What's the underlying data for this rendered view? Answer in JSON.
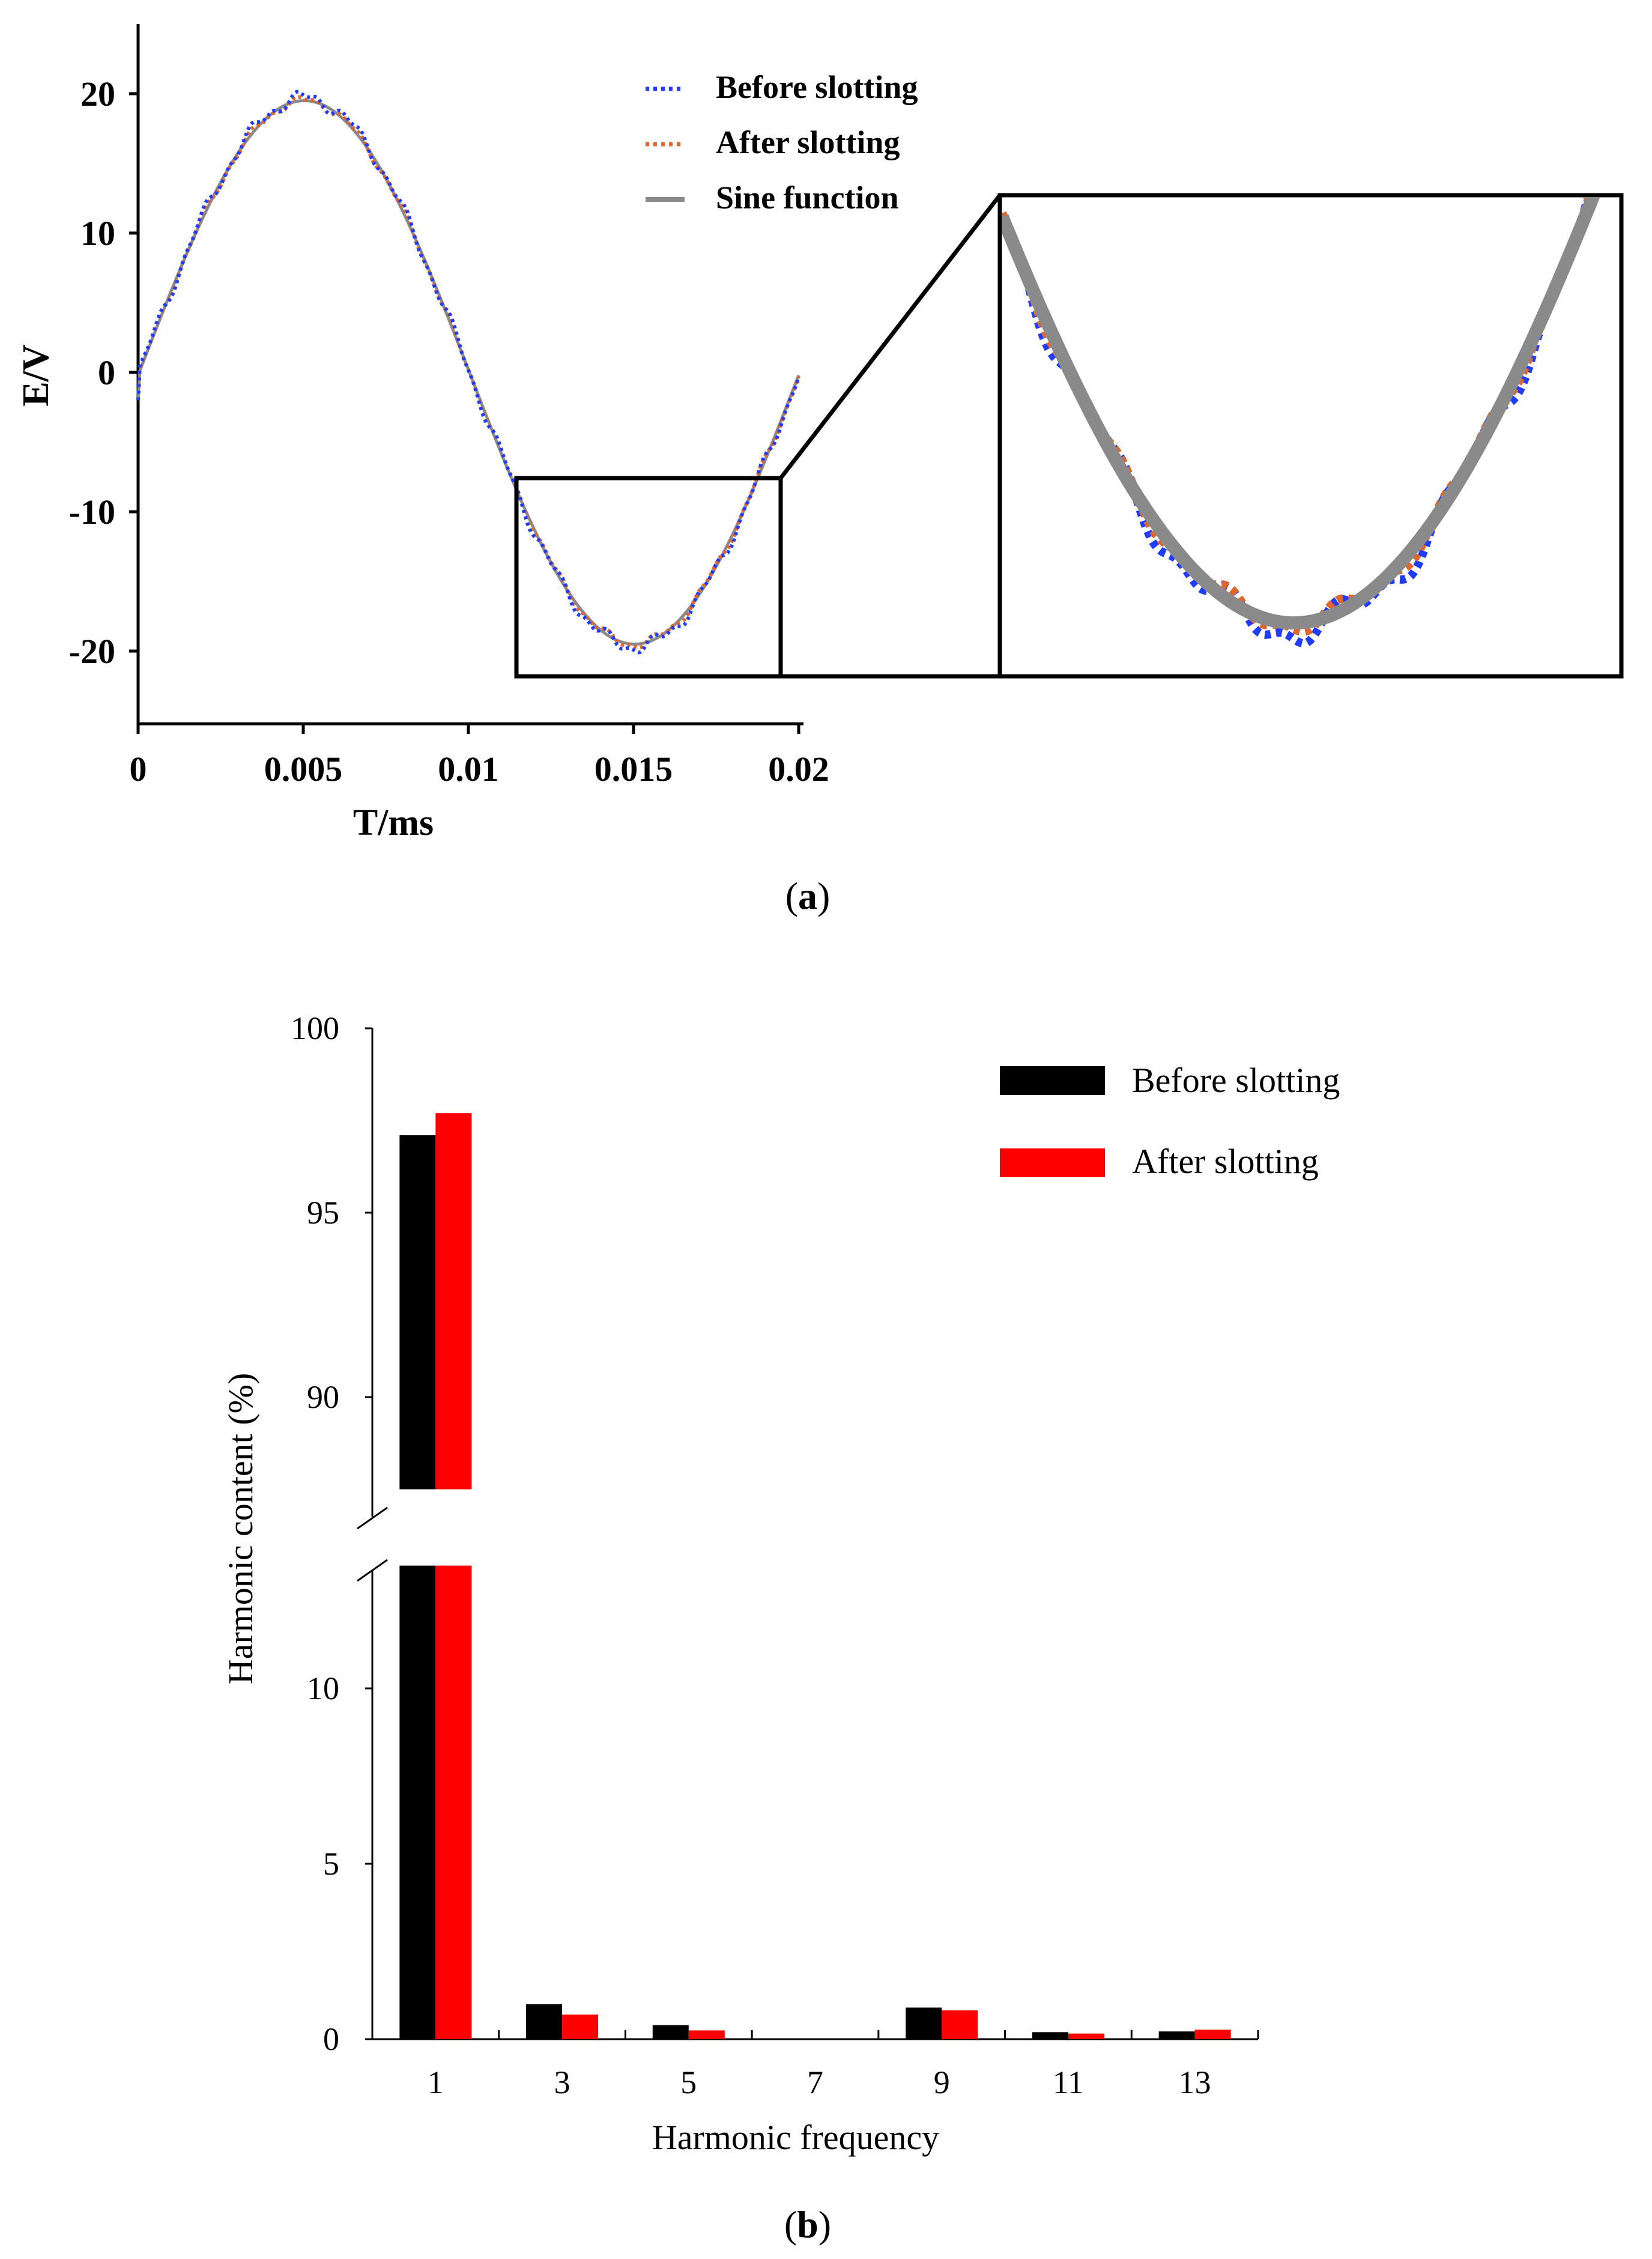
{
  "chart_data": [
    {
      "type": "line",
      "panel_label": "(a)",
      "xlabel": "T/ms",
      "ylabel": "E/V",
      "xlim": [
        0,
        0.02
      ],
      "ylim": [
        -25,
        25
      ],
      "xticks": [
        "0",
        "0.005",
        "0.01",
        "0.015",
        "0.02"
      ],
      "yticks": [
        "20",
        "10",
        "0",
        "-10",
        "-20"
      ],
      "zoom_window": {
        "x": [
          0.0113,
          0.0192
        ],
        "y": [
          -21,
          -7
        ]
      },
      "series": [
        {
          "name": "Before slotting",
          "style": "dotted",
          "color": "#1f3cff",
          "amplitude": 19.7,
          "period": 0.02,
          "phase_offset": -2.0,
          "noise": 0.6
        },
        {
          "name": "After slotting",
          "style": "dotted",
          "color": "#e0662c",
          "amplitude": 19.5,
          "period": 0.02,
          "phase_offset": -2.0,
          "noise": 0.4
        },
        {
          "name": "Sine function",
          "style": "solid",
          "color": "#8a8a8a",
          "amplitude": 19.5,
          "period": 0.02,
          "phase_offset": -2.0,
          "noise": 0
        }
      ]
    },
    {
      "type": "bar",
      "panel_label": "(b)",
      "xlabel": "Harmonic frequency",
      "ylabel": "Harmonic content (%)",
      "categories": [
        "1",
        "3",
        "5",
        "7",
        "9",
        "11",
        "13"
      ],
      "y_lower_ticks": [
        "0",
        "5",
        "10"
      ],
      "y_upper_ticks": [
        "90",
        "95",
        "100"
      ],
      "y_break": [
        13.5,
        87.5
      ],
      "series": [
        {
          "name": "Before slotting",
          "color": "#000000",
          "values": [
            97.1,
            1.0,
            0.4,
            0.0,
            0.9,
            0.2,
            0.22
          ]
        },
        {
          "name": "After slotting",
          "color": "#ff0000",
          "values": [
            97.7,
            0.7,
            0.25,
            0.0,
            0.82,
            0.16,
            0.27
          ]
        }
      ]
    }
  ]
}
